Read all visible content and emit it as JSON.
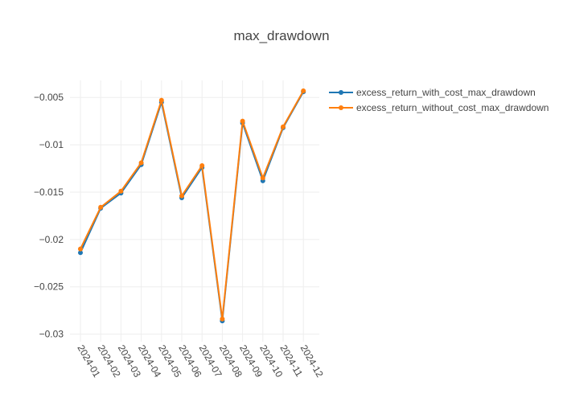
{
  "chart_data": {
    "type": "line",
    "title": "max_drawdown",
    "xlabel": "",
    "ylabel": "",
    "categories": [
      "2024-01",
      "2024-02",
      "2024-03",
      "2024-04",
      "2024-05",
      "2024-06",
      "2024-07",
      "2024-08",
      "2024-09",
      "2024-10",
      "2024-11",
      "2024-12"
    ],
    "ylim": [
      -0.0308,
      -0.0032
    ],
    "yticks": [
      -0.005,
      -0.01,
      -0.015,
      -0.02,
      -0.025,
      -0.03
    ],
    "ytick_labels": [
      "−0.005",
      "−0.01",
      "−0.015",
      "−0.02",
      "−0.025",
      "−0.03"
    ],
    "grid": true,
    "legend_position": "top-right",
    "series": [
      {
        "name": "excess_return_with_cost_max_drawdown",
        "color": "#1f77b4",
        "values": [
          -0.0214,
          -0.0167,
          -0.0151,
          -0.0121,
          -0.0055,
          -0.0156,
          -0.0124,
          -0.0286,
          -0.0077,
          -0.0138,
          -0.0082,
          -0.0044
        ]
      },
      {
        "name": "excess_return_without_cost_max_drawdown",
        "color": "#ff7f0e",
        "values": [
          -0.021,
          -0.0166,
          -0.0149,
          -0.0119,
          -0.0053,
          -0.0154,
          -0.0122,
          -0.0284,
          -0.0075,
          -0.0135,
          -0.0081,
          -0.0043
        ]
      }
    ]
  }
}
